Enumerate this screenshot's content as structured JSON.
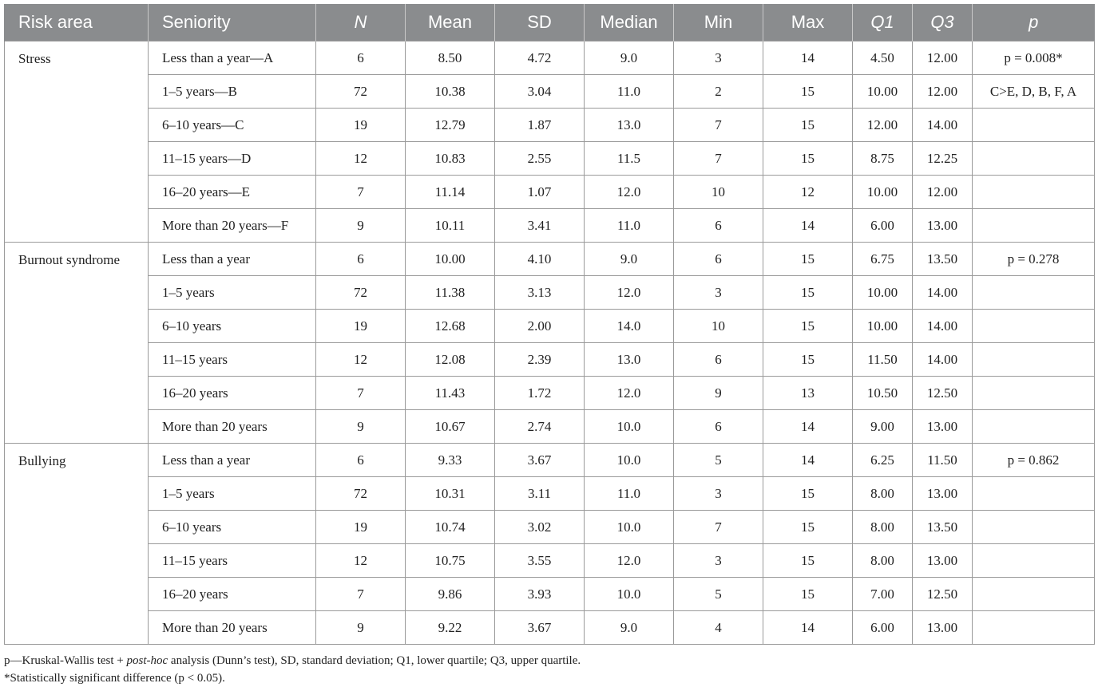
{
  "headers": [
    "Risk area",
    "Seniority",
    "N",
    "Mean",
    "SD",
    "Median",
    "Min",
    "Max",
    "Q1",
    "Q3",
    "p"
  ],
  "groups": [
    {
      "area": "Stress",
      "rows": [
        [
          "Less than a year—A",
          "6",
          "8.50",
          "4.72",
          "9.0",
          "3",
          "14",
          "4.50",
          "12.00",
          "p = 0.008*"
        ],
        [
          "1–5 years—B",
          "72",
          "10.38",
          "3.04",
          "11.0",
          "2",
          "15",
          "10.00",
          "12.00",
          "C>E, D, B, F, A"
        ],
        [
          "6–10 years—C",
          "19",
          "12.79",
          "1.87",
          "13.0",
          "7",
          "15",
          "12.00",
          "14.00",
          ""
        ],
        [
          "11–15 years—D",
          "12",
          "10.83",
          "2.55",
          "11.5",
          "7",
          "15",
          "8.75",
          "12.25",
          ""
        ],
        [
          "16–20 years—E",
          "7",
          "11.14",
          "1.07",
          "12.0",
          "10",
          "12",
          "10.00",
          "12.00",
          ""
        ],
        [
          "More than 20 years—F",
          "9",
          "10.11",
          "3.41",
          "11.0",
          "6",
          "14",
          "6.00",
          "13.00",
          ""
        ]
      ]
    },
    {
      "area": "Burnout syndrome",
      "rows": [
        [
          "Less than a year",
          "6",
          "10.00",
          "4.10",
          "9.0",
          "6",
          "15",
          "6.75",
          "13.50",
          "p = 0.278"
        ],
        [
          "1–5 years",
          "72",
          "11.38",
          "3.13",
          "12.0",
          "3",
          "15",
          "10.00",
          "14.00",
          ""
        ],
        [
          "6–10 years",
          "19",
          "12.68",
          "2.00",
          "14.0",
          "10",
          "15",
          "10.00",
          "14.00",
          ""
        ],
        [
          "11–15 years",
          "12",
          "12.08",
          "2.39",
          "13.0",
          "6",
          "15",
          "11.50",
          "14.00",
          ""
        ],
        [
          "16–20 years",
          "7",
          "11.43",
          "1.72",
          "12.0",
          "9",
          "13",
          "10.50",
          "12.50",
          ""
        ],
        [
          "More than 20 years",
          "9",
          "10.67",
          "2.74",
          "10.0",
          "6",
          "14",
          "9.00",
          "13.00",
          ""
        ]
      ]
    },
    {
      "area": "Bullying",
      "rows": [
        [
          "Less than a year",
          "6",
          "9.33",
          "3.67",
          "10.0",
          "5",
          "14",
          "6.25",
          "11.50",
          "p = 0.862"
        ],
        [
          "1–5 years",
          "72",
          "10.31",
          "3.11",
          "11.0",
          "3",
          "15",
          "8.00",
          "13.00",
          ""
        ],
        [
          "6–10 years",
          "19",
          "10.74",
          "3.02",
          "10.0",
          "7",
          "15",
          "8.00",
          "13.50",
          ""
        ],
        [
          "11–15 years",
          "12",
          "10.75",
          "3.55",
          "12.0",
          "3",
          "15",
          "8.00",
          "13.00",
          ""
        ],
        [
          "16–20 years",
          "7",
          "9.86",
          "3.93",
          "10.0",
          "5",
          "15",
          "7.00",
          "12.50",
          ""
        ],
        [
          "More than 20 years",
          "9",
          "9.22",
          "3.67",
          "9.0",
          "4",
          "14",
          "6.00",
          "13.00",
          ""
        ]
      ]
    }
  ],
  "footnotes": {
    "line1_a": "p—Kruskal-Wallis test + ",
    "line1_italic": "post-hoc",
    "line1_b": " analysis (Dunn’s test), SD, standard deviation; Q1, lower quartile; Q3, upper quartile.",
    "line2": "*Statistically significant difference (p < 0.05)."
  }
}
